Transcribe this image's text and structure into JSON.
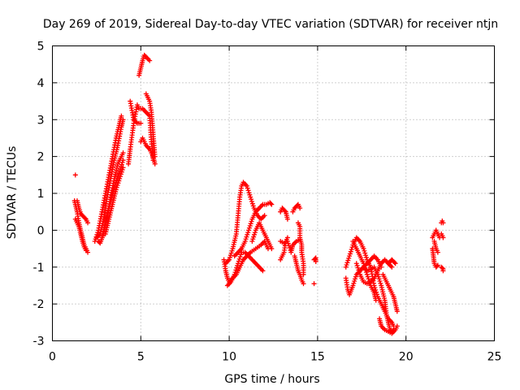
{
  "chart_data": {
    "type": "scatter",
    "title": "Day 269 of 2019, Sidereal Day-to-day VTEC variation (SDTVAR) for receiver ntjn",
    "xlabel": "GPS time / hours",
    "ylabel": "SDTVAR / TECUs",
    "xlim": [
      0,
      25
    ],
    "ylim": [
      -3,
      5
    ],
    "xticks": [
      0,
      5,
      10,
      15,
      20,
      25
    ],
    "yticks": [
      -3,
      -2,
      -1,
      0,
      1,
      2,
      3,
      4,
      5
    ],
    "grid": true,
    "marker": "plus",
    "series_color": "#ff0000",
    "tracks": [
      [
        [
          1.3,
          1.5
        ]
      ],
      [
        [
          1.25,
          0.8
        ],
        [
          1.3,
          0.7
        ],
        [
          1.4,
          0.5
        ],
        [
          1.5,
          0.2
        ],
        [
          1.6,
          0.0
        ],
        [
          1.7,
          -0.2
        ],
        [
          1.8,
          -0.4
        ],
        [
          1.9,
          -0.5
        ],
        [
          2.0,
          -0.6
        ]
      ],
      [
        [
          1.3,
          0.3
        ],
        [
          1.4,
          0.2
        ],
        [
          1.5,
          0.1
        ],
        [
          1.6,
          -0.1
        ],
        [
          1.7,
          -0.3
        ],
        [
          1.8,
          -0.45
        ],
        [
          1.9,
          -0.55
        ]
      ],
      [
        [
          1.4,
          0.8
        ],
        [
          1.5,
          0.6
        ],
        [
          1.6,
          0.45
        ],
        [
          1.7,
          0.4
        ],
        [
          1.8,
          0.35
        ],
        [
          1.9,
          0.3
        ],
        [
          2.0,
          0.2
        ]
      ],
      [
        [
          2.4,
          -0.3
        ],
        [
          2.6,
          0.0
        ],
        [
          2.8,
          0.5
        ],
        [
          3.0,
          1.0
        ],
        [
          3.2,
          1.5
        ],
        [
          3.4,
          2.0
        ],
        [
          3.6,
          2.5
        ],
        [
          3.8,
          2.9
        ],
        [
          3.9,
          3.1
        ]
      ],
      [
        [
          2.5,
          -0.2
        ],
        [
          2.7,
          -0.1
        ],
        [
          2.9,
          0.3
        ],
        [
          3.1,
          0.9
        ],
        [
          3.3,
          1.4
        ],
        [
          3.5,
          1.9
        ],
        [
          3.7,
          2.3
        ],
        [
          3.9,
          2.8
        ],
        [
          4.0,
          3.0
        ]
      ],
      [
        [
          2.6,
          -0.3
        ],
        [
          2.7,
          -0.35
        ],
        [
          2.9,
          -0.1
        ],
        [
          3.1,
          0.4
        ],
        [
          3.3,
          0.9
        ],
        [
          3.5,
          1.4
        ],
        [
          3.7,
          1.8
        ],
        [
          3.9,
          2.0
        ],
        [
          4.0,
          2.1
        ]
      ],
      [
        [
          2.8,
          -0.2
        ],
        [
          3.0,
          0.2
        ],
        [
          3.2,
          0.6
        ],
        [
          3.4,
          1.0
        ],
        [
          3.6,
          1.3
        ],
        [
          3.8,
          1.6
        ],
        [
          4.0,
          1.9
        ]
      ],
      [
        [
          3.0,
          -0.1
        ],
        [
          3.2,
          0.3
        ],
        [
          3.4,
          0.7
        ],
        [
          3.6,
          1.1
        ],
        [
          3.8,
          1.4
        ],
        [
          4.0,
          1.7
        ]
      ],
      [
        [
          4.3,
          1.8
        ],
        [
          4.4,
          2.2
        ],
        [
          4.6,
          2.9
        ],
        [
          4.8,
          3.4
        ],
        [
          4.9,
          3.3
        ],
        [
          5.1,
          3.3
        ],
        [
          5.3,
          3.2
        ],
        [
          5.5,
          3.1
        ],
        [
          5.6,
          2.4
        ],
        [
          5.7,
          1.9
        ]
      ],
      [
        [
          4.4,
          3.5
        ],
        [
          4.6,
          3.0
        ],
        [
          4.8,
          2.9
        ],
        [
          5.0,
          2.9
        ]
      ],
      [
        [
          4.9,
          4.2
        ],
        [
          5.0,
          4.4
        ],
        [
          5.1,
          4.6
        ],
        [
          5.2,
          4.75
        ],
        [
          5.3,
          4.7
        ],
        [
          5.5,
          4.6
        ]
      ],
      [
        [
          5.3,
          3.7
        ],
        [
          5.5,
          3.5
        ],
        [
          5.6,
          3.2
        ],
        [
          5.7,
          2.6
        ],
        [
          5.8,
          2.0
        ]
      ],
      [
        [
          5.0,
          2.4
        ],
        [
          5.1,
          2.5
        ],
        [
          5.3,
          2.3
        ],
        [
          5.5,
          2.2
        ],
        [
          5.7,
          2.0
        ],
        [
          5.8,
          1.8
        ]
      ],
      [
        [
          9.7,
          -0.8
        ],
        [
          9.8,
          -1.1
        ],
        [
          9.9,
          -1.3
        ],
        [
          10.0,
          -1.4
        ],
        [
          10.2,
          -1.3
        ],
        [
          10.4,
          -1.2
        ],
        [
          10.6,
          -1.0
        ],
        [
          10.8,
          -0.8
        ],
        [
          11.0,
          -0.7
        ],
        [
          11.2,
          -0.6
        ],
        [
          11.5,
          -0.5
        ],
        [
          11.8,
          -0.4
        ],
        [
          12.0,
          -0.3
        ],
        [
          12.2,
          -0.5
        ]
      ],
      [
        [
          9.8,
          -0.9
        ],
        [
          10.0,
          -0.8
        ],
        [
          10.2,
          -0.5
        ],
        [
          10.4,
          -0.1
        ],
        [
          10.5,
          0.4
        ],
        [
          10.6,
          0.9
        ],
        [
          10.7,
          1.2
        ],
        [
          10.8,
          1.3
        ],
        [
          11.0,
          1.2
        ],
        [
          11.2,
          0.9
        ],
        [
          11.4,
          0.6
        ],
        [
          11.6,
          0.4
        ],
        [
          11.8,
          0.3
        ],
        [
          12.0,
          0.4
        ]
      ],
      [
        [
          9.9,
          -1.5
        ],
        [
          10.1,
          -1.4
        ],
        [
          10.3,
          -1.2
        ],
        [
          10.5,
          -0.9
        ],
        [
          10.7,
          -0.6
        ],
        [
          10.9,
          -0.6
        ],
        [
          11.1,
          -0.7
        ],
        [
          11.3,
          -0.8
        ],
        [
          11.5,
          -0.9
        ],
        [
          11.7,
          -1.0
        ],
        [
          11.9,
          -1.1
        ]
      ],
      [
        [
          10.3,
          -0.7
        ],
        [
          10.5,
          -0.6
        ],
        [
          10.7,
          -0.5
        ],
        [
          10.9,
          -0.3
        ],
        [
          11.1,
          0.0
        ],
        [
          11.3,
          0.3
        ],
        [
          11.5,
          0.5
        ],
        [
          11.7,
          0.6
        ],
        [
          11.9,
          0.7
        ],
        [
          12.1,
          0.7
        ],
        [
          12.3,
          0.75
        ],
        [
          12.4,
          0.7
        ]
      ],
      [
        [
          11.3,
          -0.3
        ],
        [
          11.5,
          0.0
        ],
        [
          11.7,
          0.2
        ],
        [
          11.9,
          0.0
        ],
        [
          12.1,
          -0.2
        ],
        [
          12.3,
          -0.4
        ],
        [
          12.4,
          -0.5
        ]
      ],
      [
        [
          12.9,
          0.5
        ],
        [
          13.0,
          0.6
        ],
        [
          13.1,
          0.55
        ],
        [
          13.2,
          0.5
        ],
        [
          13.3,
          0.3
        ]
      ],
      [
        [
          12.9,
          -0.8
        ],
        [
          13.0,
          -0.7
        ],
        [
          13.1,
          -0.6
        ],
        [
          13.2,
          -0.3
        ],
        [
          13.3,
          -0.2
        ]
      ],
      [
        [
          12.9,
          -0.3
        ],
        [
          13.1,
          -0.35
        ],
        [
          13.3,
          -0.3
        ],
        [
          13.5,
          -0.6
        ],
        [
          13.6,
          -0.4
        ],
        [
          13.8,
          -0.3
        ],
        [
          14.0,
          -0.25
        ]
      ],
      [
        [
          13.6,
          0.5
        ],
        [
          13.7,
          0.6
        ],
        [
          13.8,
          0.65
        ],
        [
          13.9,
          0.7
        ],
        [
          14.0,
          0.6
        ]
      ],
      [
        [
          13.7,
          -0.7
        ],
        [
          13.8,
          -0.9
        ],
        [
          13.9,
          -1.1
        ],
        [
          14.0,
          -1.2
        ],
        [
          14.1,
          -1.35
        ],
        [
          14.2,
          -1.45
        ]
      ],
      [
        [
          13.9,
          0.2
        ],
        [
          14.0,
          0.1
        ],
        [
          14.0,
          -0.2
        ],
        [
          14.1,
          -0.4
        ],
        [
          14.1,
          -0.6
        ],
        [
          14.2,
          -0.9
        ],
        [
          14.2,
          -1.2
        ]
      ],
      [
        [
          14.8,
          -0.8
        ],
        [
          14.9,
          -0.75
        ],
        [
          14.9,
          -0.85
        ]
      ],
      [
        [
          14.8,
          -1.45
        ]
      ],
      [
        [
          16.6,
          -1.0
        ],
        [
          16.8,
          -0.7
        ],
        [
          17.0,
          -0.4
        ],
        [
          17.2,
          -0.2
        ],
        [
          17.4,
          -0.3
        ],
        [
          17.6,
          -0.5
        ],
        [
          17.8,
          -0.8
        ],
        [
          18.0,
          -1.0
        ],
        [
          18.2,
          -1.5
        ],
        [
          18.4,
          -1.8
        ],
        [
          18.6,
          -2.0
        ],
        [
          18.8,
          -2.2
        ],
        [
          19.0,
          -2.4
        ],
        [
          19.2,
          -2.5
        ],
        [
          19.3,
          -2.6
        ]
      ],
      [
        [
          16.6,
          -1.3
        ],
        [
          16.7,
          -1.6
        ],
        [
          16.8,
          -1.75
        ],
        [
          17.0,
          -1.5
        ],
        [
          17.2,
          -1.2
        ],
        [
          17.4,
          -1.1
        ],
        [
          17.6,
          -1.0
        ],
        [
          17.8,
          -0.9
        ],
        [
          18.0,
          -0.8
        ],
        [
          18.2,
          -0.7
        ],
        [
          18.4,
          -0.8
        ],
        [
          18.6,
          -1.0
        ]
      ],
      [
        [
          17.0,
          -0.3
        ],
        [
          17.2,
          -0.5
        ],
        [
          17.4,
          -0.7
        ],
        [
          17.6,
          -0.9
        ],
        [
          17.8,
          -1.2
        ],
        [
          18.0,
          -1.5
        ],
        [
          18.2,
          -1.7
        ],
        [
          18.3,
          -1.9
        ]
      ],
      [
        [
          17.2,
          -0.9
        ],
        [
          17.4,
          -1.2
        ],
        [
          17.6,
          -1.4
        ],
        [
          17.8,
          -1.45
        ],
        [
          18.0,
          -1.4
        ],
        [
          18.2,
          -1.3
        ],
        [
          18.4,
          -1.1
        ],
        [
          18.6,
          -0.9
        ],
        [
          18.8,
          -0.8
        ],
        [
          19.0,
          -0.9
        ],
        [
          19.2,
          -1.0
        ]
      ],
      [
        [
          17.6,
          -1.0
        ],
        [
          17.8,
          -1.1
        ],
        [
          18.0,
          -1.05
        ],
        [
          18.2,
          -1.0
        ],
        [
          18.4,
          -1.2
        ],
        [
          18.6,
          -1.5
        ],
        [
          18.8,
          -1.9
        ],
        [
          18.9,
          -2.3
        ],
        [
          19.0,
          -2.5
        ],
        [
          19.1,
          -2.7
        ],
        [
          19.2,
          -2.75
        ],
        [
          19.3,
          -2.7
        ]
      ],
      [
        [
          18.5,
          -2.4
        ],
        [
          18.6,
          -2.6
        ],
        [
          18.8,
          -2.7
        ],
        [
          19.0,
          -2.75
        ],
        [
          19.2,
          -2.8
        ],
        [
          19.4,
          -2.7
        ],
        [
          19.5,
          -2.6
        ]
      ],
      [
        [
          18.7,
          -1.2
        ],
        [
          18.9,
          -1.4
        ],
        [
          19.1,
          -1.6
        ],
        [
          19.3,
          -1.8
        ],
        [
          19.4,
          -2.0
        ],
        [
          19.5,
          -2.2
        ]
      ],
      [
        [
          19.0,
          -0.9
        ],
        [
          19.1,
          -0.85
        ],
        [
          19.2,
          -0.8
        ],
        [
          19.3,
          -0.85
        ],
        [
          19.4,
          -0.9
        ]
      ],
      [
        [
          21.5,
          -0.2
        ],
        [
          21.6,
          -0.1
        ],
        [
          21.7,
          0.0
        ],
        [
          21.8,
          -0.1
        ],
        [
          21.9,
          -0.2
        ]
      ],
      [
        [
          21.5,
          -0.5
        ],
        [
          21.55,
          -0.7
        ],
        [
          21.6,
          -0.9
        ],
        [
          21.7,
          -1.0
        ],
        [
          21.8,
          -0.95
        ]
      ],
      [
        [
          21.6,
          -0.3
        ],
        [
          21.7,
          -0.5
        ],
        [
          21.8,
          -0.6
        ]
      ],
      [
        [
          22.0,
          0.2
        ],
        [
          22.05,
          0.25
        ],
        [
          22.1,
          0.2
        ]
      ],
      [
        [
          22.0,
          -1.0
        ],
        [
          22.1,
          -1.05
        ],
        [
          22.1,
          -1.1
        ]
      ],
      [
        [
          22.0,
          -0.1
        ],
        [
          22.1,
          -0.2
        ]
      ]
    ]
  }
}
